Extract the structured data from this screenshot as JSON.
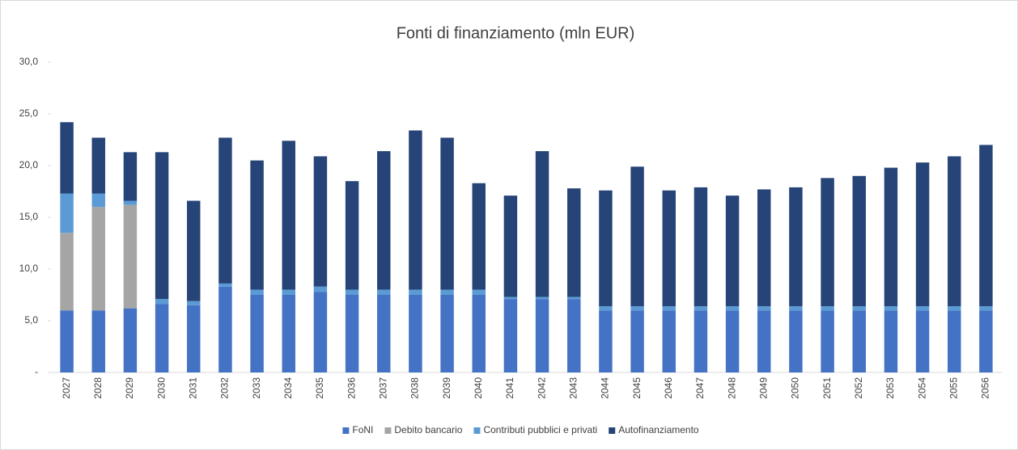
{
  "chart_data": {
    "type": "stacked_bar",
    "title": "Fonti di finanziamento (mln EUR)",
    "categories": [
      "2027",
      "2028",
      "2029",
      "2030",
      "2031",
      "2032",
      "2033",
      "2034",
      "2035",
      "2036",
      "2037",
      "2038",
      "2039",
      "2040",
      "2041",
      "2042",
      "2043",
      "2044",
      "2045",
      "2046",
      "2047",
      "2048",
      "2049",
      "2050",
      "2051",
      "2052",
      "2053",
      "2054",
      "2055",
      "2056"
    ],
    "series": [
      {
        "name": "FoNI",
        "color": "#4472c4",
        "values": [
          6.0,
          6.0,
          6.2,
          6.6,
          6.5,
          8.3,
          7.5,
          7.5,
          7.8,
          7.5,
          7.5,
          7.5,
          7.5,
          7.5,
          7.1,
          7.1,
          7.1,
          6.0,
          6.0,
          6.0,
          6.0,
          6.0,
          6.0,
          6.0,
          6.0,
          6.0,
          6.0,
          6.0,
          6.0,
          6.0
        ]
      },
      {
        "name": "Debito bancario",
        "color": "#a5a5a5",
        "values": [
          7.5,
          10.0,
          10.0,
          0,
          0,
          0,
          0,
          0,
          0,
          0,
          0,
          0,
          0,
          0,
          0,
          0,
          0,
          0,
          0,
          0,
          0,
          0,
          0,
          0,
          0,
          0,
          0,
          0,
          0,
          0
        ]
      },
      {
        "name": "Contributi pubblici e privati",
        "color": "#5b9bd5",
        "values": [
          3.8,
          1.3,
          0.4,
          0.5,
          0.4,
          0.3,
          0.5,
          0.5,
          0.5,
          0.5,
          0.5,
          0.5,
          0.5,
          0.5,
          0.2,
          0.2,
          0.2,
          0.4,
          0.4,
          0.4,
          0.4,
          0.4,
          0.4,
          0.4,
          0.4,
          0.4,
          0.4,
          0.4,
          0.4,
          0.4
        ]
      },
      {
        "name": "Autofinanziamento",
        "color": "#264478",
        "values": [
          6.9,
          5.4,
          4.7,
          14.2,
          9.7,
          14.1,
          12.5,
          14.4,
          12.6,
          10.5,
          13.4,
          15.4,
          14.7,
          10.3,
          9.8,
          14.1,
          10.5,
          11.2,
          13.5,
          11.2,
          11.5,
          10.7,
          11.3,
          11.5,
          12.4,
          12.6,
          13.4,
          13.9,
          14.5,
          15.6
        ]
      }
    ],
    "ylim": [
      0,
      30
    ],
    "yticks": [
      {
        "value": 0,
        "label": "-"
      },
      {
        "value": 5,
        "label": "5,0"
      },
      {
        "value": 10,
        "label": "10,0"
      },
      {
        "value": 15,
        "label": "15,0"
      },
      {
        "value": 20,
        "label": "20,0"
      },
      {
        "value": 25,
        "label": "25,0"
      },
      {
        "value": 30,
        "label": "30,0"
      }
    ],
    "legend": "bottom"
  }
}
